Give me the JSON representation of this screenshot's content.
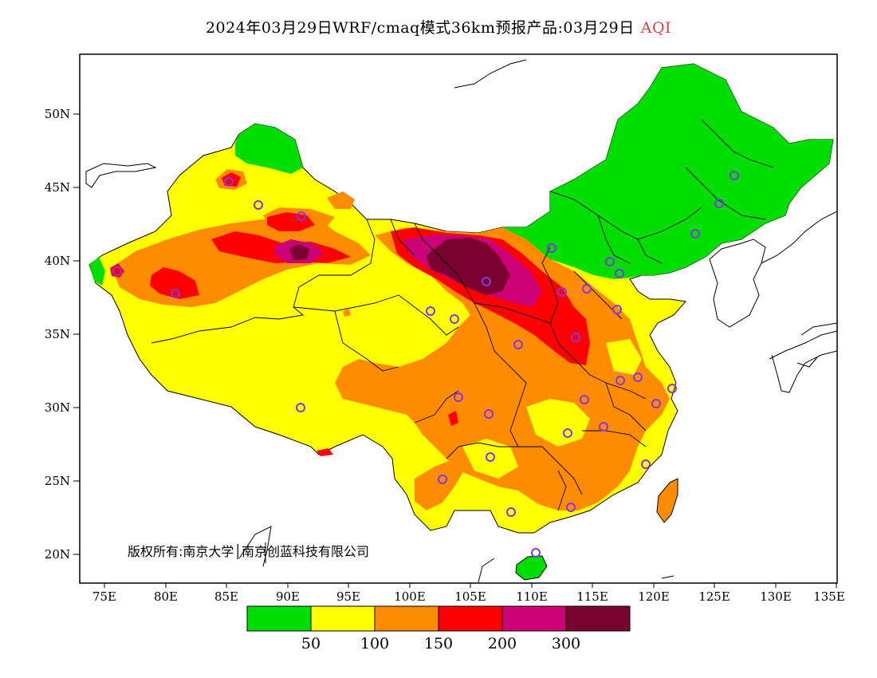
{
  "header": {
    "title": "2024年03月29日WRF/cmaq模式36km预报产品:03月29日",
    "variable": "AQI",
    "variable_color": "#e0403c"
  },
  "axes": {
    "lat_labels": [
      "50N",
      "45N",
      "40N",
      "35N",
      "30N",
      "25N",
      "20N"
    ],
    "lon_labels": [
      "75E",
      "80E",
      "85E",
      "90E",
      "95E",
      "100E",
      "105E",
      "110E",
      "115E",
      "120E",
      "125E",
      "130E",
      "135E"
    ]
  },
  "copyright": "版权所有:南京大学│南京创蓝科技有限公司",
  "legend": {
    "colors": [
      "#00dd00",
      "#ffff00",
      "#ff8c00",
      "#ff0000",
      "#cc0077",
      "#7a0030"
    ],
    "labels": [
      "50",
      "100",
      "150",
      "200",
      "300"
    ]
  },
  "palette": {
    "green": "#00dd00",
    "yellow": "#ffff00",
    "orange": "#ff8c00",
    "red": "#ff0000",
    "magenta": "#cc0077",
    "maroon": "#7a0030",
    "station_marker": "#8833ee"
  }
}
